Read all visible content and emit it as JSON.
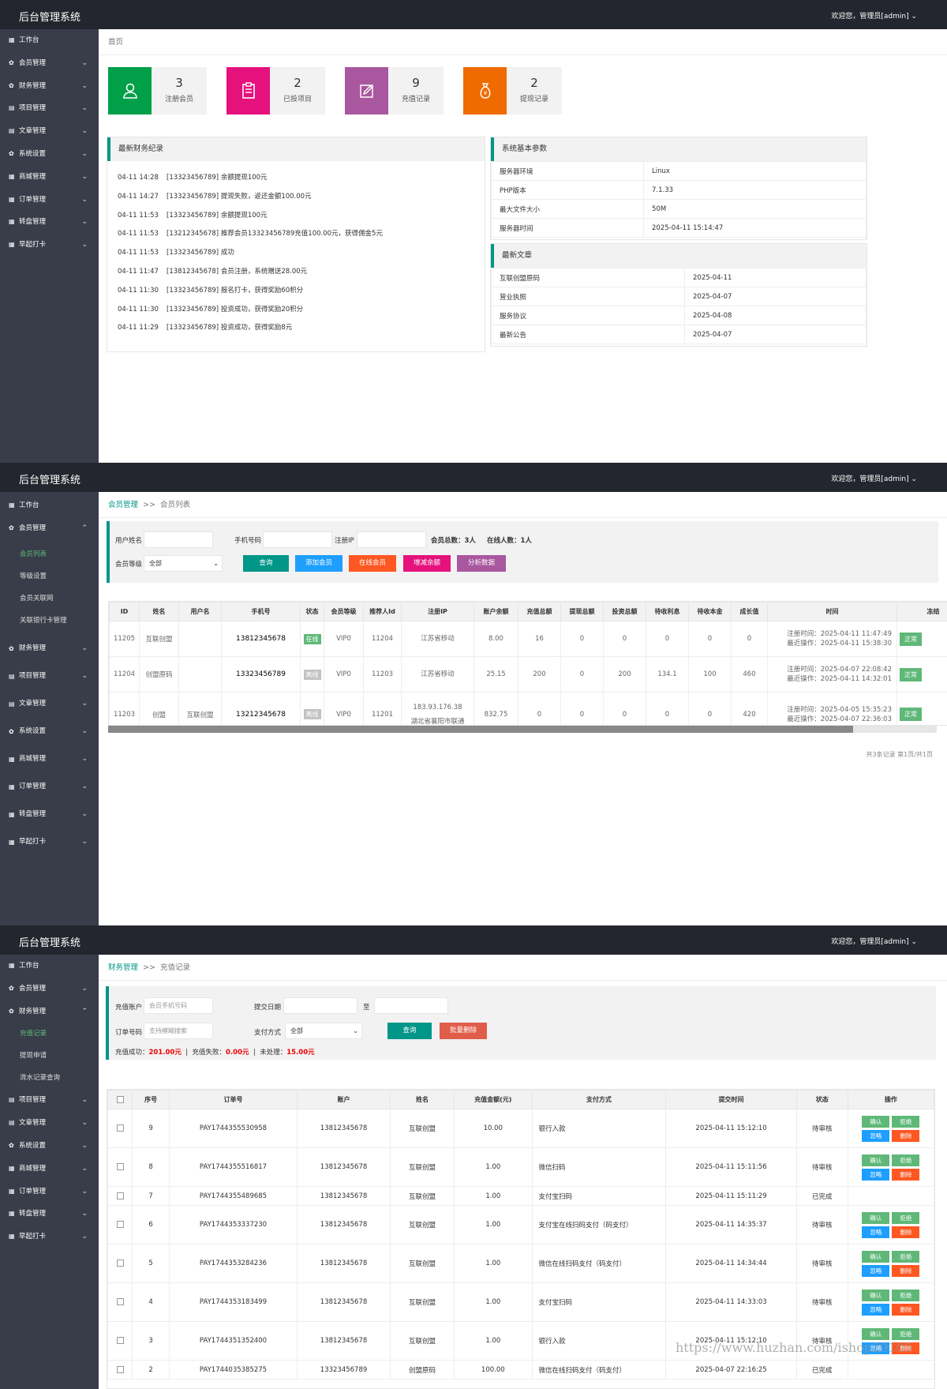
{
  "brand": "后台管理系统",
  "welcome": "欢迎您，管理员[admin]",
  "nav": {
    "workbench": "工作台",
    "member": "会员管理",
    "finance": "财务管理",
    "project": "项目管理",
    "article": "文章管理",
    "system": "系统设置",
    "mall": "商城管理",
    "order": "订单管理",
    "wheel": "转盘管理",
    "checkin": "早起打卡",
    "member_sub": [
      "会员列表",
      "等级设置",
      "会员关联网",
      "关联银行卡管理"
    ],
    "finance_sub": [
      "充值记录",
      "提现申请",
      "流水记录查询"
    ]
  },
  "s1": {
    "crumb": "首页",
    "stats": [
      {
        "num": "3",
        "label": "注册会员",
        "color": "#009f48"
      },
      {
        "num": "2",
        "label": "已投项目",
        "color": "#e5117c"
      },
      {
        "num": "9",
        "label": "充值记录",
        "color": "#a9579f"
      },
      {
        "num": "2",
        "label": "提现记录",
        "color": "#ef6b00"
      }
    ],
    "finance_title": "最新财务纪录",
    "logs": [
      {
        "t": "04-11 14:28",
        "m": "[13323456789] 余额提现100元"
      },
      {
        "t": "04-11 14:27",
        "m": "[13323456789] 提现失败，返还金额100.00元"
      },
      {
        "t": "04-11 11:53",
        "m": "[13323456789] 余额提现100元"
      },
      {
        "t": "04-11 11:53",
        "m": "[13212345678] 推荐会员13323456789充值100.00元，获得佣金5元"
      },
      {
        "t": "04-11 11:53",
        "m": "[13323456789] 成功"
      },
      {
        "t": "04-11 11:47",
        "m": "[13812345678] 会员注册，系统赠送28.00元"
      },
      {
        "t": "04-11 11:30",
        "m": "[13323456789] 报名打卡，获得奖励60积分"
      },
      {
        "t": "04-11 11:30",
        "m": "[13323456789] 投资成功，获得奖励20积分"
      },
      {
        "t": "04-11 11:29",
        "m": "[13323456789] 投资成功，获得奖励8元"
      }
    ],
    "sys_title": "系统基本参数",
    "sys": [
      {
        "k": "服务器环境",
        "v": "Linux"
      },
      {
        "k": "PHP版本",
        "v": "7.1.33"
      },
      {
        "k": "最大文件大小",
        "v": "50M"
      },
      {
        "k": "服务器时间",
        "v": "2025-04-11 15:14:47"
      }
    ],
    "art_title": "最新文章",
    "articles": [
      {
        "k": "互联创盟原码",
        "v": "2025-04-11"
      },
      {
        "k": "营业执照",
        "v": "2025-04-07"
      },
      {
        "k": "服务协议",
        "v": "2025-04-08"
      },
      {
        "k": "最新公告",
        "v": "2025-04-07"
      }
    ]
  },
  "s2": {
    "crumb1": "会员管理",
    "sep": ">>",
    "crumb2": "会员列表",
    "f_username": "用户姓名",
    "f_phone": "手机号码",
    "f_ip": "注册IP",
    "total": "会员总数：3人",
    "online": "在线人数：1人",
    "f_level": "会员等级",
    "level_val": "全部",
    "btn_query": "查询",
    "btn_add": "添加会员",
    "btn_online": "在线会员",
    "btn_balance": "增减余额",
    "btn_analysis": "分析数据",
    "headers": [
      "ID",
      "姓名",
      "用户名",
      "手机号",
      "状态",
      "会员等级",
      "推荐人Id",
      "注册IP",
      "账户余额",
      "充值总额",
      "提现总额",
      "投资总额",
      "待收利息",
      "待收本金",
      "成长值",
      "时间",
      "冻结"
    ],
    "rows": [
      {
        "id": "11205",
        "name": "互联创盟",
        "user": "",
        "phone": "13812345678",
        "status": "在线",
        "level": "VIP0",
        "ref": "11204",
        "ip": "",
        "loc": "江苏省移动",
        "bal": "8.00",
        "rech": "16",
        "wd": "0",
        "inv": "0",
        "intr": "0",
        "prin": "0",
        "grow": "0",
        "reg": "注册时间：2025-04-11 11:47:49",
        "last": "最近操作：2025-04-11 15:38:30",
        "freeze": "正常"
      },
      {
        "id": "11204",
        "name": "创盟原码",
        "user": "",
        "phone": "13323456789",
        "status": "离线",
        "level": "VIP0",
        "ref": "11203",
        "ip": "",
        "loc": "江苏省移动",
        "bal": "25.15",
        "rech": "200",
        "wd": "0",
        "inv": "200",
        "intr": "134.1",
        "prin": "100",
        "grow": "460",
        "reg": "注册时间：2025-04-07 22:08:42",
        "last": "最近操作：2025-04-11 14:32:01",
        "freeze": "正常"
      },
      {
        "id": "11203",
        "name": "创盟",
        "user": "互联创盟",
        "phone": "13212345678",
        "status": "离线",
        "level": "VIP0",
        "ref": "11201",
        "ip": "183.93.176.38",
        "loc": "湖北省襄阳市联通",
        "bal": "832.75",
        "rech": "0",
        "wd": "0",
        "inv": "0",
        "intr": "0",
        "prin": "0",
        "grow": "420",
        "reg": "注册时间：2025-04-05 15:35:23",
        "last": "最近操作：2025-04-07 22:36:03",
        "freeze": "正常"
      }
    ],
    "pager": "共3条记录 第1页/共1页"
  },
  "s3": {
    "crumb1": "财务管理",
    "sep": ">>",
    "crumb2": "充值记录",
    "f_account": "充值账户",
    "ph_account": "会员手机号码",
    "f_date": "提交日期",
    "to": "至",
    "f_order": "订单号码",
    "ph_order": "支持模糊搜索",
    "f_pay": "支付方式",
    "pay_val": "全部",
    "btn_query": "查询",
    "btn_delete": "批量删除",
    "sum_ok_l": "充值成功：",
    "sum_ok": "201.00元",
    "sum_fail_l": "充值失败：",
    "sum_fail": "0.00元",
    "sum_pend_l": "未处理：",
    "sum_pend": "15.00元",
    "bar": "|",
    "headers": [
      "序号",
      "订单号",
      "账户",
      "姓名",
      "充值金额(元)",
      "支付方式",
      "提交时间",
      "状态",
      "操作"
    ],
    "op_confirm": "确认",
    "op_reject": "拒绝",
    "op_ignore": "忽略",
    "op_delete": "删除",
    "rows": [
      {
        "no": "9",
        "order": "PAY1744355530958",
        "acc": "13812345678",
        "name": "互联创盟",
        "amt": "10.00",
        "pay": "银行入款",
        "time": "2025-04-11 15:12:10",
        "st": "待审核",
        "ops": true
      },
      {
        "no": "8",
        "order": "PAY1744355516817",
        "acc": "13812345678",
        "name": "互联创盟",
        "amt": "1.00",
        "pay": "微信扫码",
        "time": "2025-04-11 15:11:56",
        "st": "待审核",
        "ops": true
      },
      {
        "no": "7",
        "order": "PAY1744355489685",
        "acc": "13812345678",
        "name": "互联创盟",
        "amt": "1.00",
        "pay": "支付宝扫码",
        "time": "2025-04-11 15:11:29",
        "st": "已完成",
        "ops": false
      },
      {
        "no": "6",
        "order": "PAY1744353337230",
        "acc": "13812345678",
        "name": "互联创盟",
        "amt": "1.00",
        "pay": "支付宝在线扫码支付（码支付）",
        "time": "2025-04-11 14:35:37",
        "st": "待审核",
        "ops": true
      },
      {
        "no": "5",
        "order": "PAY1744353284236",
        "acc": "13812345678",
        "name": "互联创盟",
        "amt": "1.00",
        "pay": "微信在线扫码支付（码支付）",
        "time": "2025-04-11 14:34:44",
        "st": "待审核",
        "ops": true
      },
      {
        "no": "4",
        "order": "PAY1744353183499",
        "acc": "13812345678",
        "name": "互联创盟",
        "amt": "1.00",
        "pay": "支付宝扫码",
        "time": "2025-04-11 14:33:03",
        "st": "待审核",
        "ops": true
      },
      {
        "no": "3",
        "order": "PAY1744351352400",
        "acc": "13812345678",
        "name": "互联创盟",
        "amt": "1.00",
        "pay": "银行入款",
        "time": "2025-04-11 15:12:10",
        "st": "待审核",
        "ops": true
      },
      {
        "no": "2",
        "order": "PAY1744035385275",
        "acc": "13323456789",
        "name": "创盟原码",
        "amt": "100.00",
        "pay": "微信在线扫码支付（码支付）",
        "time": "2025-04-07 22:16:25",
        "st": "已完成",
        "ops": false
      }
    ]
  },
  "watermark": "https://www.huzhan.com/ishop29105"
}
